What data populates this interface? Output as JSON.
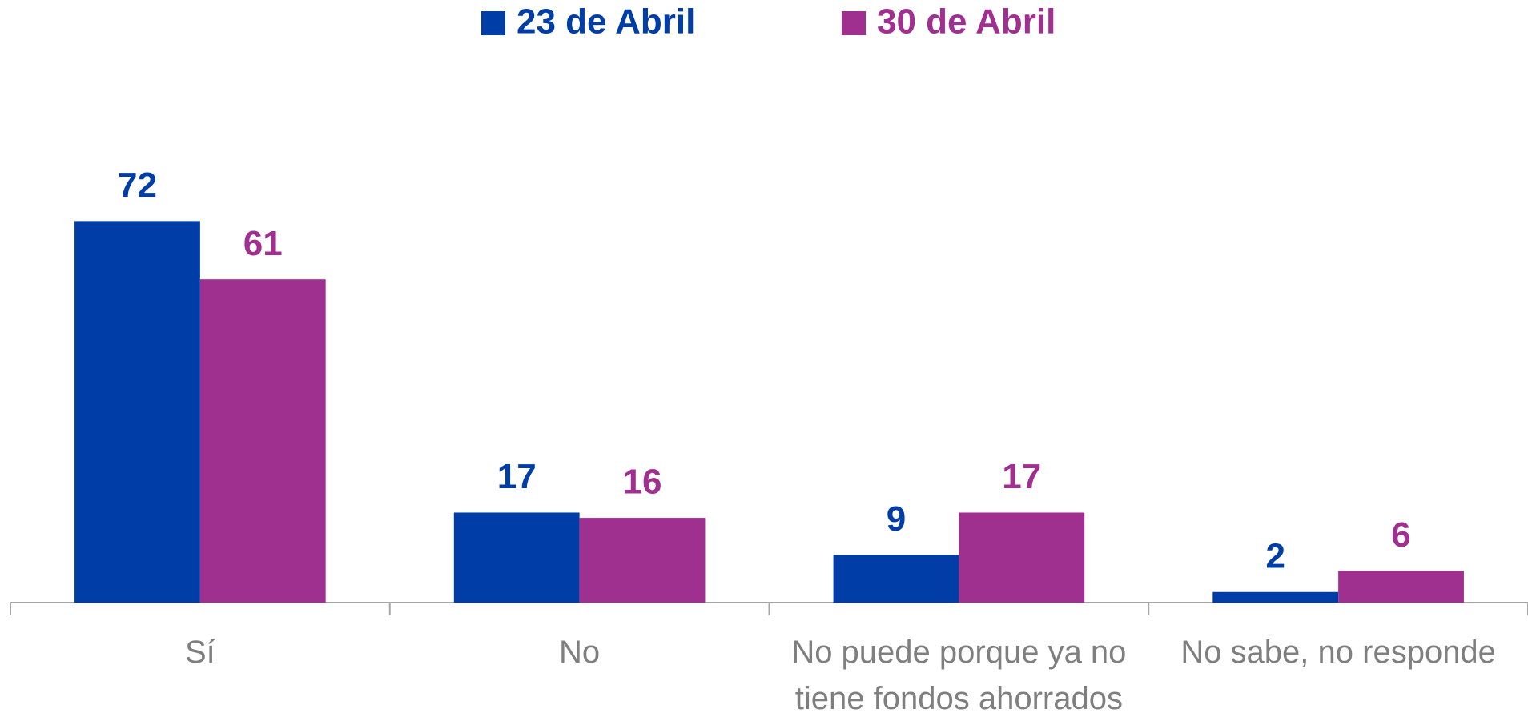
{
  "chart_data": {
    "type": "bar",
    "categories": [
      "Sí",
      "No",
      "No puede porque ya no tiene fondos ahorrados",
      "No sabe, no responde"
    ],
    "series": [
      {
        "name": "23 de Abril",
        "color": "#003da6",
        "values": [
          72,
          17,
          9,
          2
        ]
      },
      {
        "name": "30 de Abril",
        "color": "#a03090",
        "values": [
          61,
          16,
          17,
          6
        ]
      }
    ],
    "legend": "top"
  }
}
